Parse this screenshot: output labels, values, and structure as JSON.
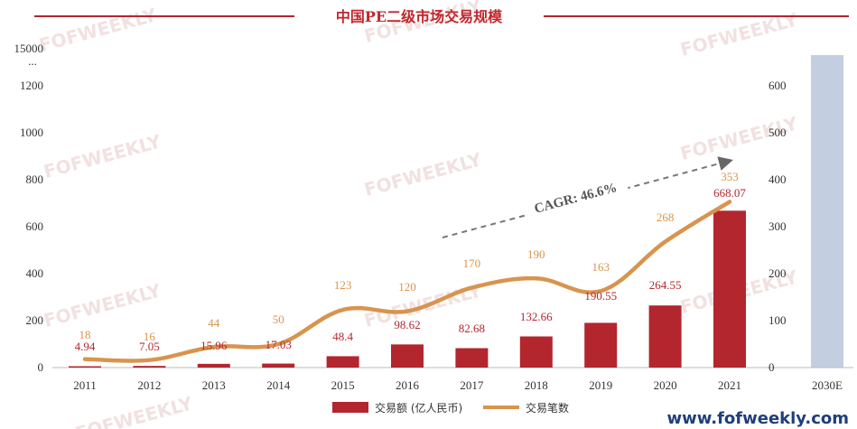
{
  "chart_data": {
    "type": "bar",
    "title": "中国PE二级市场交易规模",
    "categories": [
      "2011",
      "2012",
      "2013",
      "2014",
      "2015",
      "2016",
      "2017",
      "2018",
      "2019",
      "2020",
      "2021",
      "2030E"
    ],
    "series": [
      {
        "name": "交易额 (亿人民币)",
        "type": "bar",
        "axis": "left",
        "color": "#b3262e",
        "values": [
          4.94,
          7.05,
          15.96,
          17.03,
          48.4,
          98.62,
          82.68,
          132.66,
          190.55,
          264.55,
          668.07,
          null
        ],
        "labels": [
          "4.94",
          "7.05",
          "15.96",
          "17.03",
          "48.4",
          "98.62",
          "82.68",
          "132.66",
          "190.55",
          "264.55",
          "668.07",
          ""
        ]
      },
      {
        "name": "交易笔数",
        "type": "line",
        "axis": "right",
        "color": "#d8944e",
        "values": [
          18,
          16,
          44,
          50,
          123,
          120,
          170,
          190,
          163,
          268,
          353,
          null
        ],
        "labels": [
          "18",
          "16",
          "44",
          "50",
          "123",
          "120",
          "170",
          "190",
          "163",
          "268",
          "353",
          ""
        ]
      }
    ],
    "projection_bar": {
      "category": "2030E",
      "color": "#c3cfe0"
    },
    "left_axis": {
      "ticks": [
        "0",
        "200",
        "400",
        "600",
        "800",
        "1000",
        "1200"
      ],
      "top_label": "15000",
      "top_dots": "...",
      "range": [
        0,
        1300
      ]
    },
    "right_axis": {
      "ticks": [
        "0",
        "100",
        "200",
        "300",
        "400",
        "500",
        "600"
      ],
      "range": [
        0,
        650
      ]
    },
    "annotation": {
      "text": "CAGR: 46.6%"
    },
    "legend_position": "bottom",
    "grid": false
  },
  "watermark": "FOFWEEKLY",
  "site_url": "www.fofweekly.com"
}
